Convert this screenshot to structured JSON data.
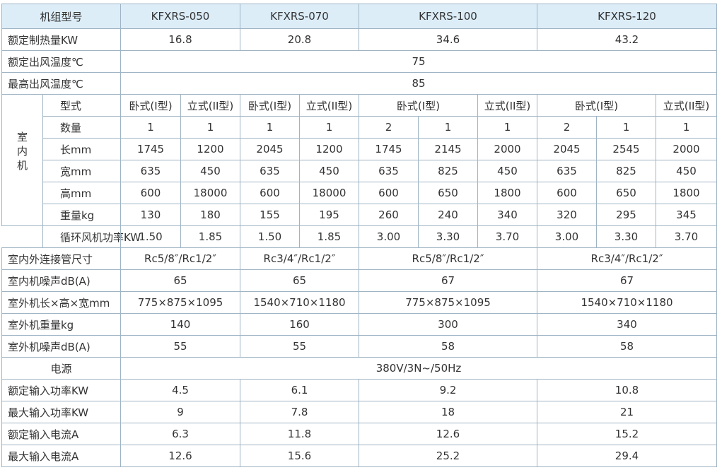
{
  "table": {
    "header": [
      "机组型号",
      "KFXRS-050",
      "KFXRS-070",
      "KFXRS-100",
      "KFXRS-120"
    ],
    "indoor_label": "室内机",
    "rows": [
      [
        "额定制热量KW",
        "16.8",
        "20.8",
        "34.6",
        "43.2"
      ],
      [
        "额定出风温度℃",
        "75"
      ],
      [
        "最高出风温度℃",
        "85"
      ],
      [
        "型式",
        "卧式(I型)",
        "立式(II型)",
        "卧式(I型)",
        "立式(II型)",
        "卧式(I型)",
        "立式(II型)",
        "卧式(I型)",
        "立式(II型)"
      ],
      [
        "数量",
        "1",
        "1",
        "1",
        "1",
        "2",
        "1",
        "1",
        "2",
        "1",
        "1"
      ],
      [
        "长mm",
        "1745",
        "1200",
        "2045",
        "1200",
        "1745",
        "2145",
        "2000",
        "2045",
        "2545",
        "2000"
      ],
      [
        "宽mm",
        "635",
        "450",
        "635",
        "450",
        "635",
        "825",
        "450",
        "635",
        "825",
        "450"
      ],
      [
        "高mm",
        "600",
        "18000",
        "600",
        "18000",
        "600",
        "650",
        "1800",
        "600",
        "650",
        "1800"
      ],
      [
        "重量kg",
        "130",
        "180",
        "155",
        "195",
        "260",
        "240",
        "340",
        "320",
        "295",
        "345"
      ],
      [
        "循环风机功率KW",
        "1.50",
        "1.85",
        "1.50",
        "1.85",
        "3.00",
        "3.30",
        "3.70",
        "3.00",
        "3.30",
        "3.70"
      ],
      [
        "室内外连接管尺寸",
        "Rc5/8″/Rc1/2″",
        "Rc3/4″/Rc1/2″",
        "Rc5/8″/Rc1/2″",
        "Rc3/4″/Rc1/2″"
      ],
      [
        "室内机噪声dB(A)",
        "65",
        "65",
        "67",
        "67"
      ],
      [
        "室外机长×高×宽mm",
        "775×875×1095",
        "1540×710×1180",
        "775×875×1095",
        "1540×710×1180"
      ],
      [
        "室外机重量kg",
        "140",
        "160",
        "300",
        "340"
      ],
      [
        "室外机噪声dB(A)",
        "55",
        "55",
        "58",
        "58"
      ],
      [
        "电源",
        "380V/3N~/50Hz"
      ],
      [
        "额定输入功率KW",
        "4.5",
        "6.1",
        "9.2",
        "10.8"
      ],
      [
        "最大输入功率KW",
        "9",
        "7.8",
        "18",
        "21"
      ],
      [
        "额定输入电流A",
        "6.3",
        "11.8",
        "12.6",
        "15.2"
      ],
      [
        "最大输入电流A",
        "12.6",
        "15.6",
        "25.2",
        "29.4"
      ]
    ]
  }
}
